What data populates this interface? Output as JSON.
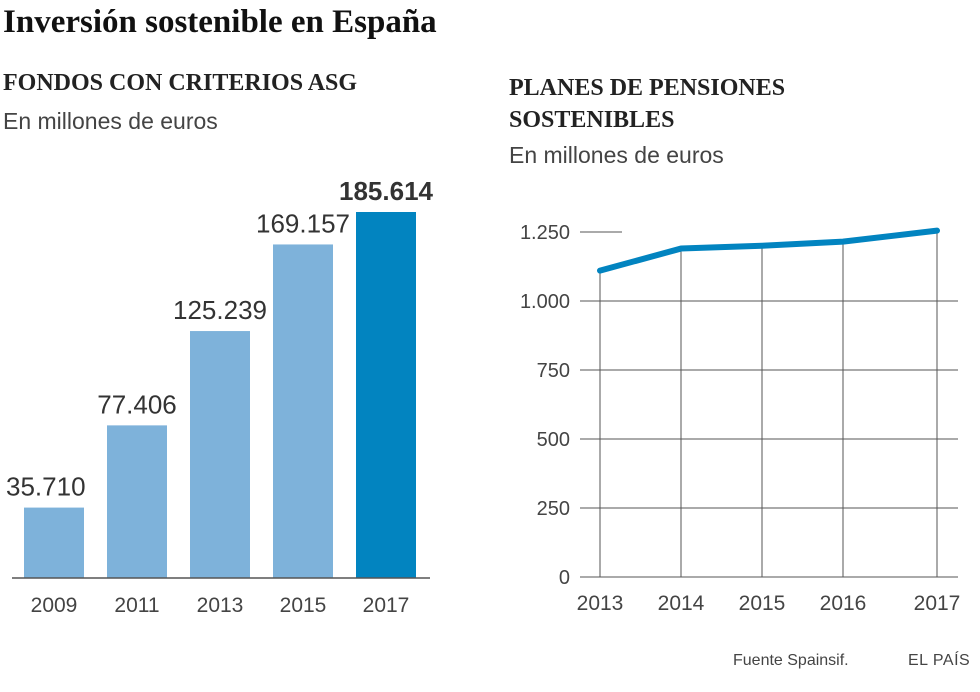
{
  "title": "Inversión sostenible en España",
  "source": "Fuente Spainsif.",
  "brand": "EL PAÍS",
  "colors": {
    "bar": "#7eb2da",
    "bar_highlight": "#0284c0",
    "line": "#0284c0",
    "grid": "#555555"
  },
  "chart_data": [
    {
      "type": "bar",
      "title": "FONDOS CON CRITERIOS ASG",
      "subtitle": "En millones de euros",
      "categories": [
        "2009",
        "2011",
        "2013",
        "2015",
        "2017"
      ],
      "values": [
        35710,
        77406,
        125239,
        169157,
        185614
      ],
      "value_labels": [
        "35.710",
        "77.406",
        "125.239",
        "169.157",
        "185.614"
      ],
      "highlight_index": 4,
      "ylim": [
        0,
        185614
      ]
    },
    {
      "type": "line",
      "title": "PLANES DE PENSIONES SOSTENIBLES",
      "subtitle": "En millones de euros",
      "x": [
        "2013",
        "2014",
        "2015",
        "2016",
        "2017"
      ],
      "values": [
        1110,
        1190,
        1200,
        1215,
        1255
      ],
      "ylim": [
        0,
        1250
      ],
      "yticks": [
        0,
        250,
        500,
        750,
        1000,
        1250
      ],
      "ytick_labels": [
        "0",
        "250",
        "500",
        "750",
        "1.000",
        "1.250"
      ],
      "grid": true
    }
  ]
}
